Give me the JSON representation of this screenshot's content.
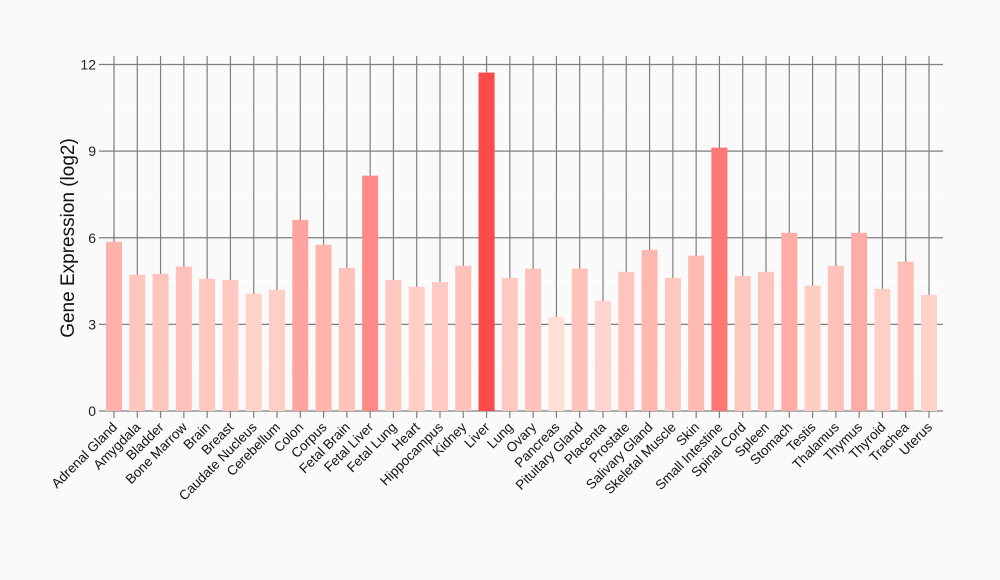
{
  "chart_data": {
    "type": "bar",
    "title": "",
    "xlabel": "",
    "ylabel": "Gene Expression (log2)",
    "ylim": [
      0,
      12
    ],
    "yticks": [
      0,
      3,
      6,
      9,
      12
    ],
    "grid": true,
    "categories": [
      "Adrenal Gland",
      "Amygdala",
      "Bladder",
      "Bone Marrow",
      "Brain",
      "Breast",
      "Caudate Nucleus",
      "Cerebellum",
      "Colon",
      "Corpus",
      "Fetal Brain",
      "Fetal Liver",
      "Fetal Lung",
      "Heart",
      "Hippocampus",
      "Kidney",
      "Liver",
      "Lung",
      "Ovary",
      "Pancreas",
      "Pituitary Gland",
      "Placenta",
      "Prostate",
      "Salivary Gland",
      "Skeletal Muscle",
      "Skin",
      "Small Intestine",
      "Spinal Cord",
      "Spleen",
      "Stomach",
      "Testis",
      "Thalamus",
      "Thymus",
      "Thyroid",
      "Trachea",
      "Uterus"
    ],
    "values": [
      5.86,
      4.72,
      4.75,
      5.0,
      4.58,
      4.54,
      4.06,
      4.2,
      6.62,
      5.76,
      4.96,
      8.15,
      4.54,
      4.3,
      4.47,
      5.03,
      11.72,
      4.61,
      4.93,
      3.26,
      4.93,
      3.82,
      4.82,
      5.58,
      4.61,
      5.38,
      9.12,
      4.68,
      4.82,
      6.17,
      4.34,
      5.03,
      6.17,
      4.23,
      5.17,
      4.02
    ],
    "color_low": "#ffe0d6",
    "color_high": "#ff4a4a"
  }
}
